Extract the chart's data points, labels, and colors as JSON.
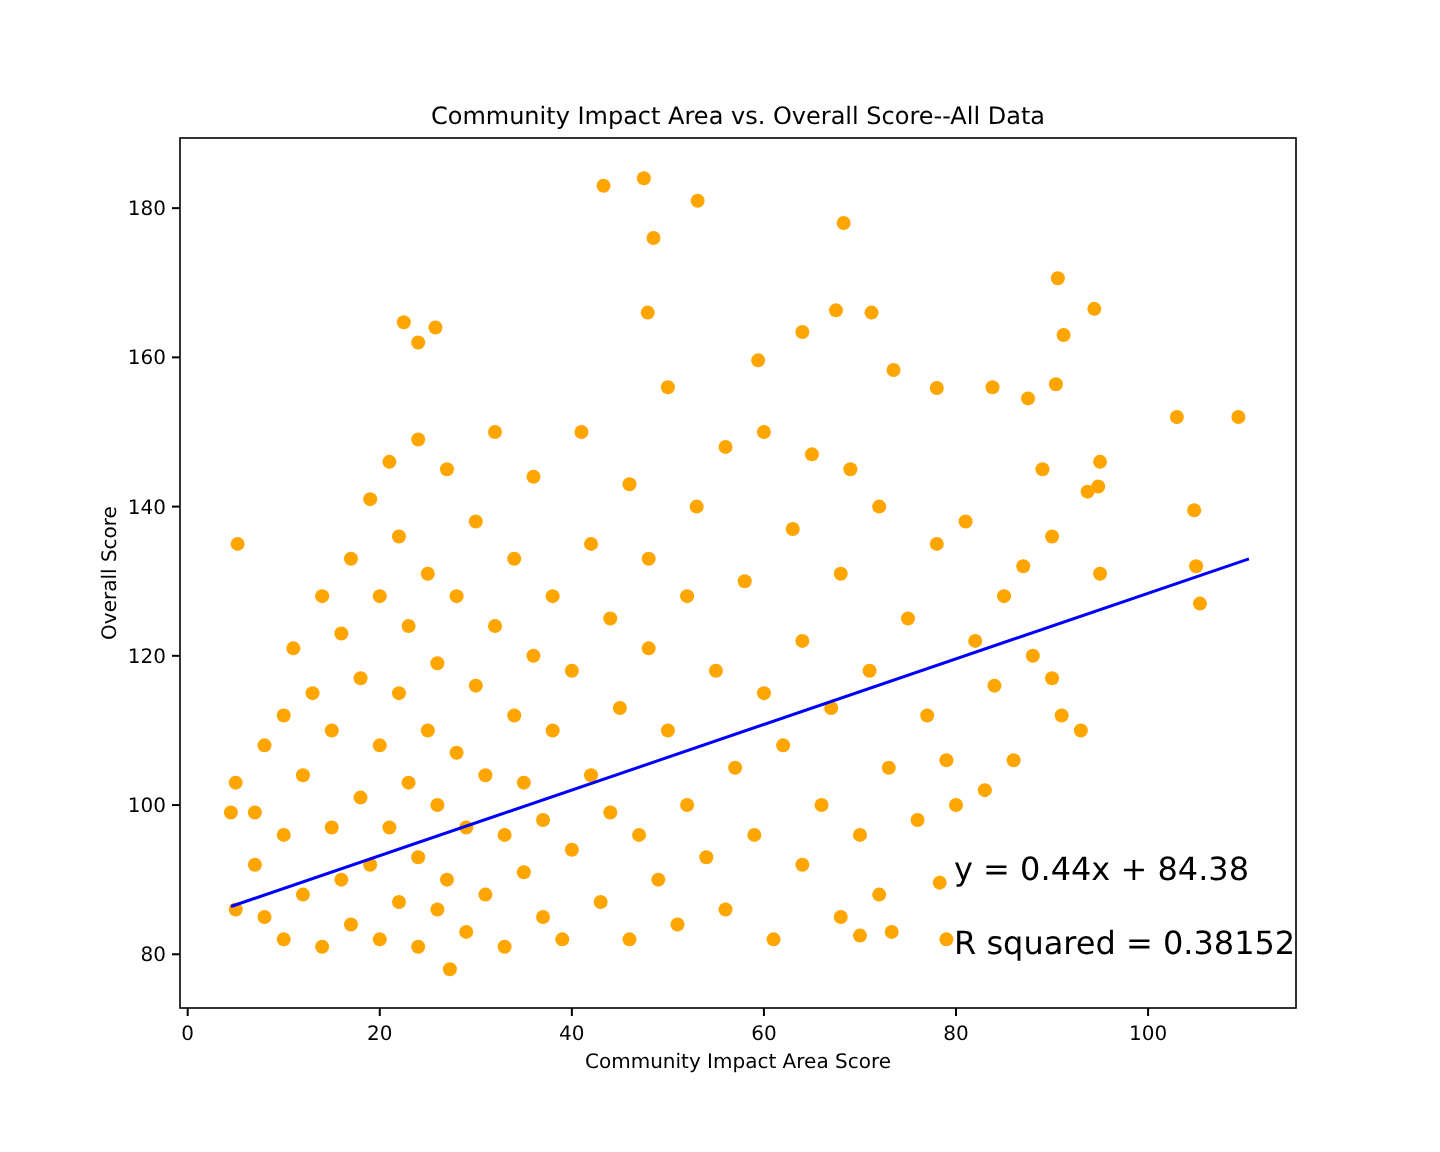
{
  "chart_data": {
    "type": "scatter",
    "title": "Community Impact Area vs. Overall Score--All Data",
    "xlabel": "Community Impact Area Score",
    "ylabel": "Overall Score",
    "xlim": [
      -0.8,
      115.4
    ],
    "ylim": [
      72.8,
      189.4
    ],
    "xticks": [
      0,
      20,
      40,
      60,
      80,
      100
    ],
    "yticks": [
      80,
      100,
      120,
      140,
      160,
      180
    ],
    "grid": false,
    "annotations": [
      "y = 0.44x + 84.38",
      "R squared = 0.38152"
    ],
    "series": [
      {
        "marker": "circle",
        "color": "#ffa500",
        "x": [
          5,
          4.5,
          5,
          7,
          7,
          8,
          8,
          10,
          10,
          10,
          11,
          12,
          12,
          13,
          14,
          14,
          15,
          15,
          16,
          16,
          17,
          17,
          18,
          18,
          19,
          19,
          20,
          20,
          20,
          21,
          21,
          22,
          22,
          22,
          23,
          23,
          24,
          24,
          24,
          25,
          25,
          26,
          26,
          26,
          27,
          27,
          28,
          28,
          29,
          29,
          30,
          30,
          31,
          31,
          32,
          32,
          33,
          33,
          34,
          34,
          35,
          35,
          36,
          36,
          37,
          37,
          38,
          38,
          39,
          40,
          40,
          41,
          42,
          42,
          43,
          44,
          44,
          45,
          46,
          46,
          47,
          48,
          48,
          49,
          50,
          50,
          51,
          52,
          52,
          53,
          54,
          55,
          56,
          56,
          57,
          58,
          59,
          60,
          60,
          61,
          62,
          63,
          64,
          64,
          65,
          66,
          67,
          68,
          68,
          69,
          70,
          71,
          72,
          72,
          73,
          75,
          76,
          77,
          78,
          79,
          80,
          81,
          82,
          83,
          84,
          85,
          86,
          87,
          88,
          89,
          90,
          91,
          93,
          95,
          90,
          43.3,
          47.5,
          53.1,
          48.5,
          68.3,
          90.6,
          22.5,
          25.8,
          24,
          94.4,
          91.2,
          109.4,
          103,
          104.8,
          105,
          105.4,
          95,
          94.8,
          93.7,
          87.5,
          90.4,
          83.8,
          78,
          73.5,
          71.2,
          67.5,
          64,
          59.4,
          47.9,
          5.2,
          27.3,
          73.3,
          70,
          79,
          78.3
        ],
        "values": [
          86,
          99,
          103,
          92,
          99,
          85,
          108,
          82,
          96,
          112,
          121,
          88,
          104,
          115,
          81,
          128,
          97,
          110,
          90,
          123,
          84,
          133,
          101,
          117,
          141,
          92,
          82,
          108,
          128,
          146,
          97,
          87,
          115,
          136,
          103,
          124,
          81,
          93,
          149,
          110,
          131,
          86,
          100,
          119,
          145,
          90,
          107,
          128,
          83,
          97,
          116,
          138,
          104,
          88,
          150,
          124,
          81,
          96,
          112,
          133,
          91,
          103,
          120,
          144,
          85,
          98,
          110,
          128,
          82,
          94,
          118,
          150,
          104,
          135,
          87,
          125,
          99,
          113,
          143,
          82,
          96,
          121,
          133,
          90,
          110,
          156,
          84,
          128,
          100,
          140,
          93,
          118,
          148,
          86,
          105,
          130,
          96,
          150,
          115,
          82,
          108,
          137,
          92,
          122,
          147,
          100,
          113,
          85,
          131,
          145,
          96,
          118,
          88,
          140,
          105,
          125,
          98,
          112,
          135,
          106,
          100,
          138,
          122,
          102,
          116,
          128,
          106,
          132,
          120,
          145,
          136,
          112,
          110,
          131,
          117,
          183,
          184,
          181,
          176,
          178,
          170.6,
          164.7,
          164,
          162,
          166.5,
          163,
          152,
          152,
          139.5,
          132,
          127,
          146,
          142.7,
          142,
          154.5,
          156.4,
          156,
          155.9,
          158.3,
          166,
          166.3,
          163.4,
          159.6,
          166,
          135,
          78,
          83,
          82.5,
          82,
          89.6
        ]
      },
      {
        "type": "line",
        "color": "#0000ff",
        "line_style": "solid",
        "x": [
          4.5,
          110.5
        ],
        "values": [
          86.4,
          133.0
        ]
      }
    ]
  }
}
